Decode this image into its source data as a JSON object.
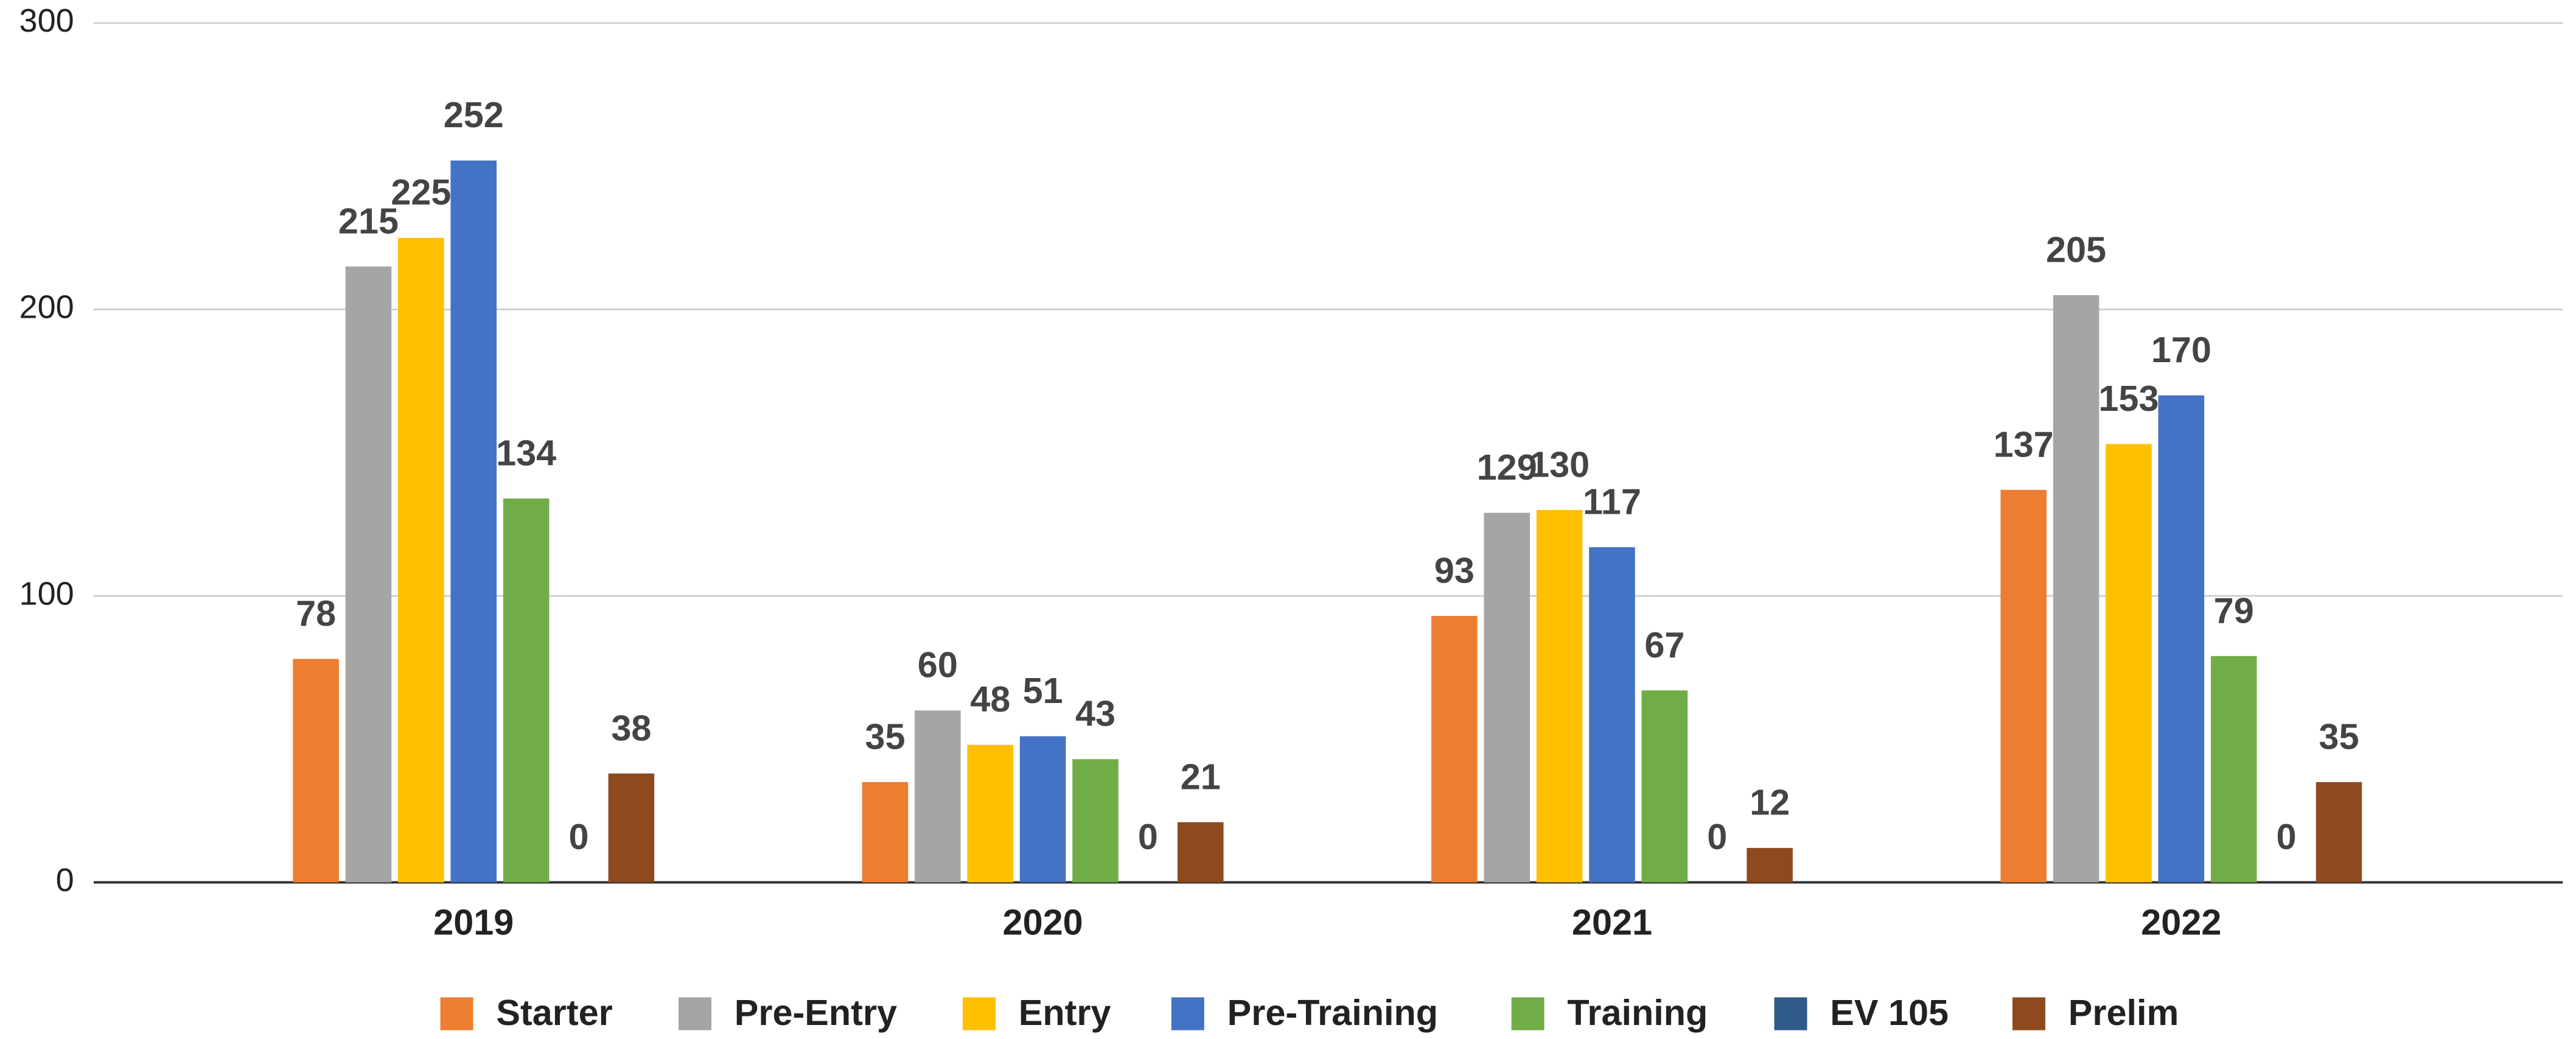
{
  "chart_data": {
    "type": "bar",
    "categories": [
      "2019",
      "2020",
      "2021",
      "2022"
    ],
    "series": [
      {
        "name": "Starter",
        "color": "#ed7d31",
        "values": [
          78,
          35,
          93,
          137
        ]
      },
      {
        "name": "Pre-Entry",
        "color": "#a5a5a5",
        "values": [
          215,
          60,
          129,
          205
        ]
      },
      {
        "name": "Entry",
        "color": "#ffc000",
        "values": [
          225,
          48,
          130,
          153
        ]
      },
      {
        "name": "Pre-Training",
        "color": "#4472c4",
        "values": [
          252,
          51,
          117,
          170
        ]
      },
      {
        "name": "Training",
        "color": "#70ad47",
        "values": [
          134,
          43,
          67,
          79
        ]
      },
      {
        "name": "EV 105",
        "color": "#2f5a87",
        "values": [
          0,
          0,
          0,
          0
        ]
      },
      {
        "name": "Prelim",
        "color": "#8e4a1e",
        "values": [
          38,
          21,
          12,
          35
        ]
      }
    ],
    "ylim": [
      0,
      300
    ],
    "yticks": [
      0,
      100,
      200,
      300
    ],
    "grid": true,
    "legend": "bottom"
  }
}
